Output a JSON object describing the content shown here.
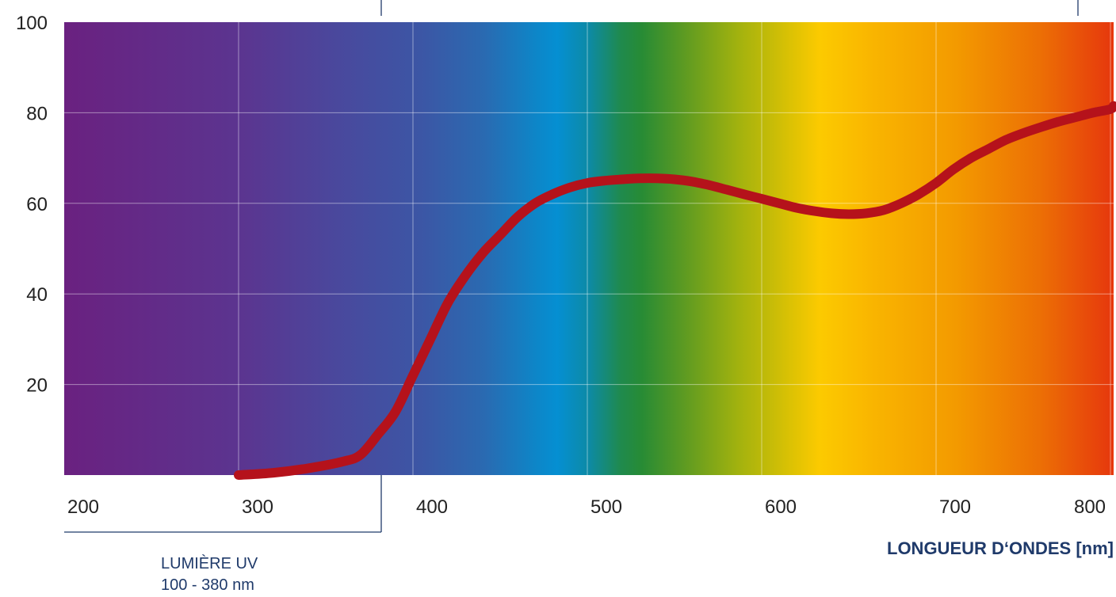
{
  "chart_data": {
    "type": "line",
    "title": "",
    "xlabel": "LONGUEUR D‘ONDES [nm]",
    "ylabel": "",
    "xlim": [
      200,
      810
    ],
    "ylim": [
      0,
      100
    ],
    "x_ticks": [
      200,
      300,
      400,
      500,
      600,
      700,
      800
    ],
    "y_ticks": [
      20,
      40,
      60,
      80,
      100
    ],
    "grid": true,
    "background": "visible light spectrum gradient (violet to red)",
    "series": [
      {
        "color": "#b5121b",
        "x": [
          300,
          320,
          340,
          360,
          370,
          380,
          390,
          400,
          410,
          420,
          430,
          440,
          450,
          460,
          470,
          480,
          490,
          500,
          510,
          520,
          530,
          540,
          550,
          560,
          570,
          580,
          590,
          600,
          610,
          620,
          630,
          640,
          650,
          660,
          670,
          680,
          690,
          700,
          710,
          720,
          730,
          740,
          750,
          760,
          770,
          780,
          790,
          800,
          810
        ],
        "values": [
          0,
          0.5,
          1.5,
          3,
          4.5,
          9,
          14,
          22,
          30,
          38,
          44,
          49,
          53,
          57,
          60,
          62,
          63.5,
          64.5,
          65,
          65.3,
          65.5,
          65.5,
          65.3,
          64.8,
          64,
          63,
          62,
          61,
          60,
          59,
          58.3,
          57.8,
          57.6,
          57.8,
          58.5,
          60,
          62,
          64.5,
          67.5,
          70,
          72,
          74,
          75.5,
          76.8,
          78,
          79,
          80,
          80.8,
          81.5
        ]
      }
    ],
    "annotations": [
      {
        "label": "LUMIÈRE UV",
        "range": "100 - 380 nm"
      }
    ]
  },
  "colors": {
    "curve": "#b5121b",
    "text_dark": "#222222",
    "text_blue": "#1f3a6a",
    "grid": "#ffffff"
  }
}
